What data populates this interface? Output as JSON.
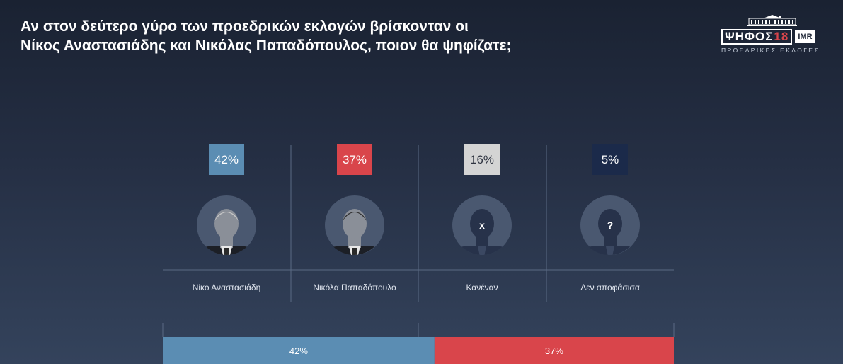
{
  "title": {
    "line1": "Αν στον δεύτερο γύρο των προεδρικών εκλογών βρίσκονταν οι",
    "line2": "Νίκος Αναστασιάδης και Νικόλας Παπαδόπουλος, ποιον θα ψηφίζατε;"
  },
  "logo": {
    "word": "ΨΗΦΟΣ",
    "year": "18",
    "badge": "IMR",
    "subtitle": "ΠΡΟΕΔΡΙΚΕΣ ΕΚΛΟΓΕΣ"
  },
  "chart_data": {
    "type": "bar",
    "categories": [
      "Νίκο Αναστασιάδη",
      "Νικόλα Παπαδόπουλο",
      "Κανέναν",
      "Δεν αποφάσισα"
    ],
    "values": [
      42,
      37,
      16,
      5
    ],
    "value_labels": [
      "42%",
      "37%",
      "16%",
      "5%"
    ],
    "unit": "%",
    "colors": [
      "#5b8db3",
      "#d9454b",
      "#d4d4d4",
      "#1b2a4a"
    ],
    "label_colors": [
      "#ffffff",
      "#ffffff",
      "#2f3441",
      "#ffffff"
    ],
    "avatar_marks": [
      "",
      "",
      "x",
      "?"
    ],
    "stacked_bar": {
      "segments": [
        {
          "label": "42%",
          "value": 42,
          "color": "#5b8db3"
        },
        {
          "label": "37%",
          "value": 37,
          "color": "#d9454b"
        }
      ],
      "total": 79
    },
    "grid": false,
    "legend": "none"
  }
}
